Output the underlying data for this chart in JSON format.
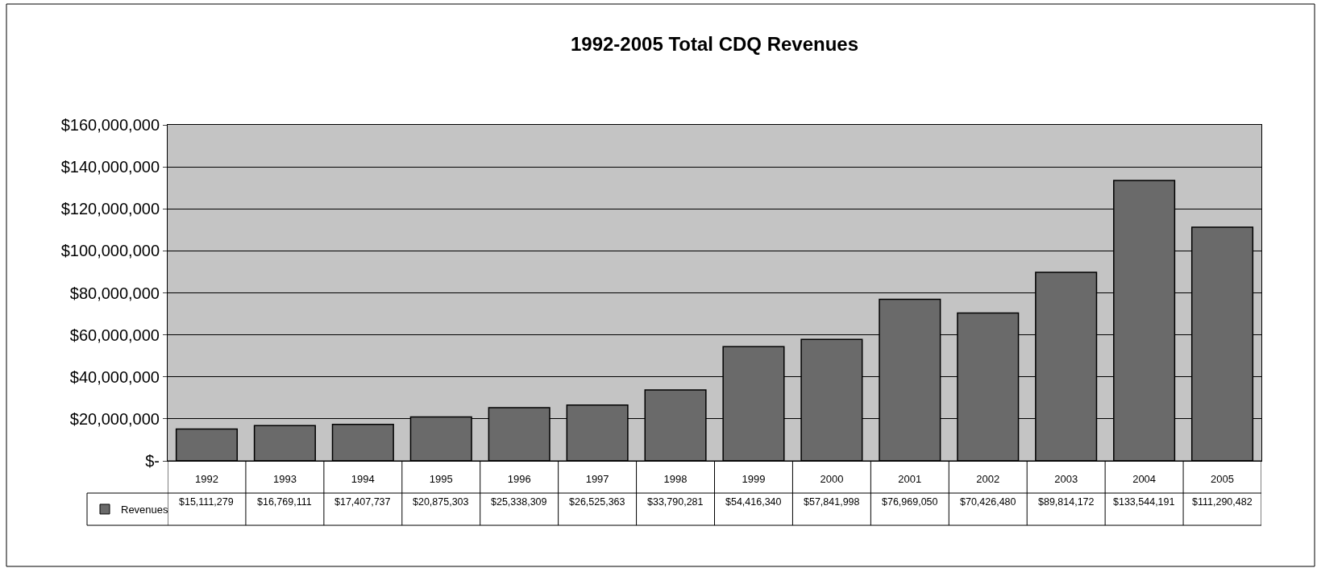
{
  "chart_data": {
    "type": "bar",
    "title": "1992-2005 Total CDQ Revenues",
    "categories": [
      "1992",
      "1993",
      "1994",
      "1995",
      "1996",
      "1997",
      "1998",
      "1999",
      "2000",
      "2001",
      "2002",
      "2003",
      "2004",
      "2005"
    ],
    "series": [
      {
        "name": "Revenues",
        "color": "#6a6a6a",
        "values": [
          15111279,
          16769111,
          17407737,
          20875303,
          25338309,
          26525363,
          33790281,
          54416340,
          57841998,
          76969050,
          70426480,
          89814172,
          133544191,
          111290482
        ],
        "value_labels": [
          "$15,111,279",
          "$16,769,111",
          "$17,407,737",
          "$20,875,303",
          "$25,338,309",
          "$26,525,363",
          "$33,790,281",
          "$54,416,340",
          "$57,841,998",
          "$76,969,050",
          "$70,426,480",
          "$89,814,172",
          "$133,544,191",
          "$111,290,482"
        ]
      }
    ],
    "ylim": [
      0,
      160000000
    ],
    "yticks": [
      {
        "value": 0,
        "label": "$-"
      },
      {
        "value": 20000000,
        "label": "$20,000,000"
      },
      {
        "value": 40000000,
        "label": "$40,000,000"
      },
      {
        "value": 60000000,
        "label": "$60,000,000"
      },
      {
        "value": 80000000,
        "label": "$80,000,000"
      },
      {
        "value": 100000000,
        "label": "$100,000,000"
      },
      {
        "value": 120000000,
        "label": "$120,000,000"
      },
      {
        "value": 140000000,
        "label": "$140,000,000"
      },
      {
        "value": 160000000,
        "label": "$160,000,000"
      }
    ],
    "grid": "y",
    "legend": "bottom left"
  }
}
